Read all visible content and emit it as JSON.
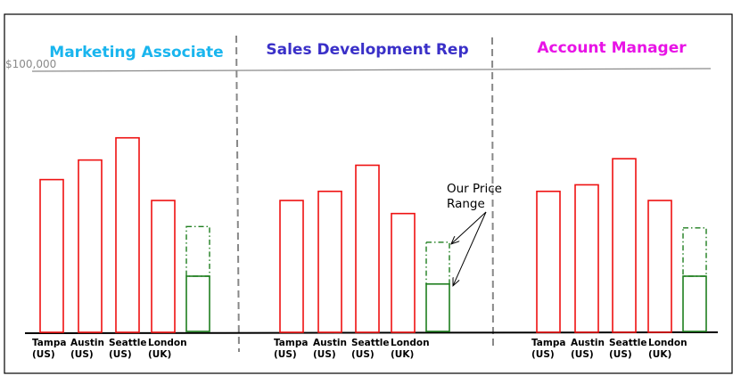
{
  "chart_data": {
    "type": "bar",
    "reference_line": {
      "label": "$100,000",
      "value": 100000
    },
    "ylim": [
      0,
      100000
    ],
    "panels": [
      {
        "title": "Marketing Associate",
        "title_color": "#19b5ee",
        "categories": [
          [
            "Tampa",
            "(US)"
          ],
          [
            "Austin",
            "(US)"
          ],
          [
            "Seattle",
            "(US)"
          ],
          [
            "London",
            "(UK)"
          ]
        ],
        "values": [
          58500,
          66000,
          74500,
          50500
        ],
        "price_range": [
          21500,
          40500
        ]
      },
      {
        "title": "Sales Development Rep",
        "title_color": "#3a30c8",
        "categories": [
          [
            "Tampa",
            "(US)"
          ],
          [
            "Austin",
            "(US)"
          ],
          [
            "Seattle",
            "(US)"
          ],
          [
            "London",
            "(UK)"
          ]
        ],
        "values": [
          50500,
          54000,
          64000,
          45500
        ],
        "price_range": [
          18500,
          34500
        ]
      },
      {
        "title": "Account Manager",
        "title_color": "#e813e6",
        "categories": [
          [
            "Tampa",
            "(US)"
          ],
          [
            "Austin",
            "(US)"
          ],
          [
            "Seattle",
            "(US)"
          ],
          [
            "London",
            "(UK)"
          ]
        ],
        "values": [
          54000,
          56500,
          66500,
          50500
        ],
        "price_range": [
          21500,
          40000
        ]
      }
    ],
    "annotation": {
      "text": [
        "Our Price",
        "Range"
      ]
    },
    "colors": {
      "bar_edge": "#ee1111",
      "range_edge": "#1e7e1e",
      "divider": "#888888",
      "reference": "#8a8a8a",
      "axis": "#000000"
    }
  }
}
